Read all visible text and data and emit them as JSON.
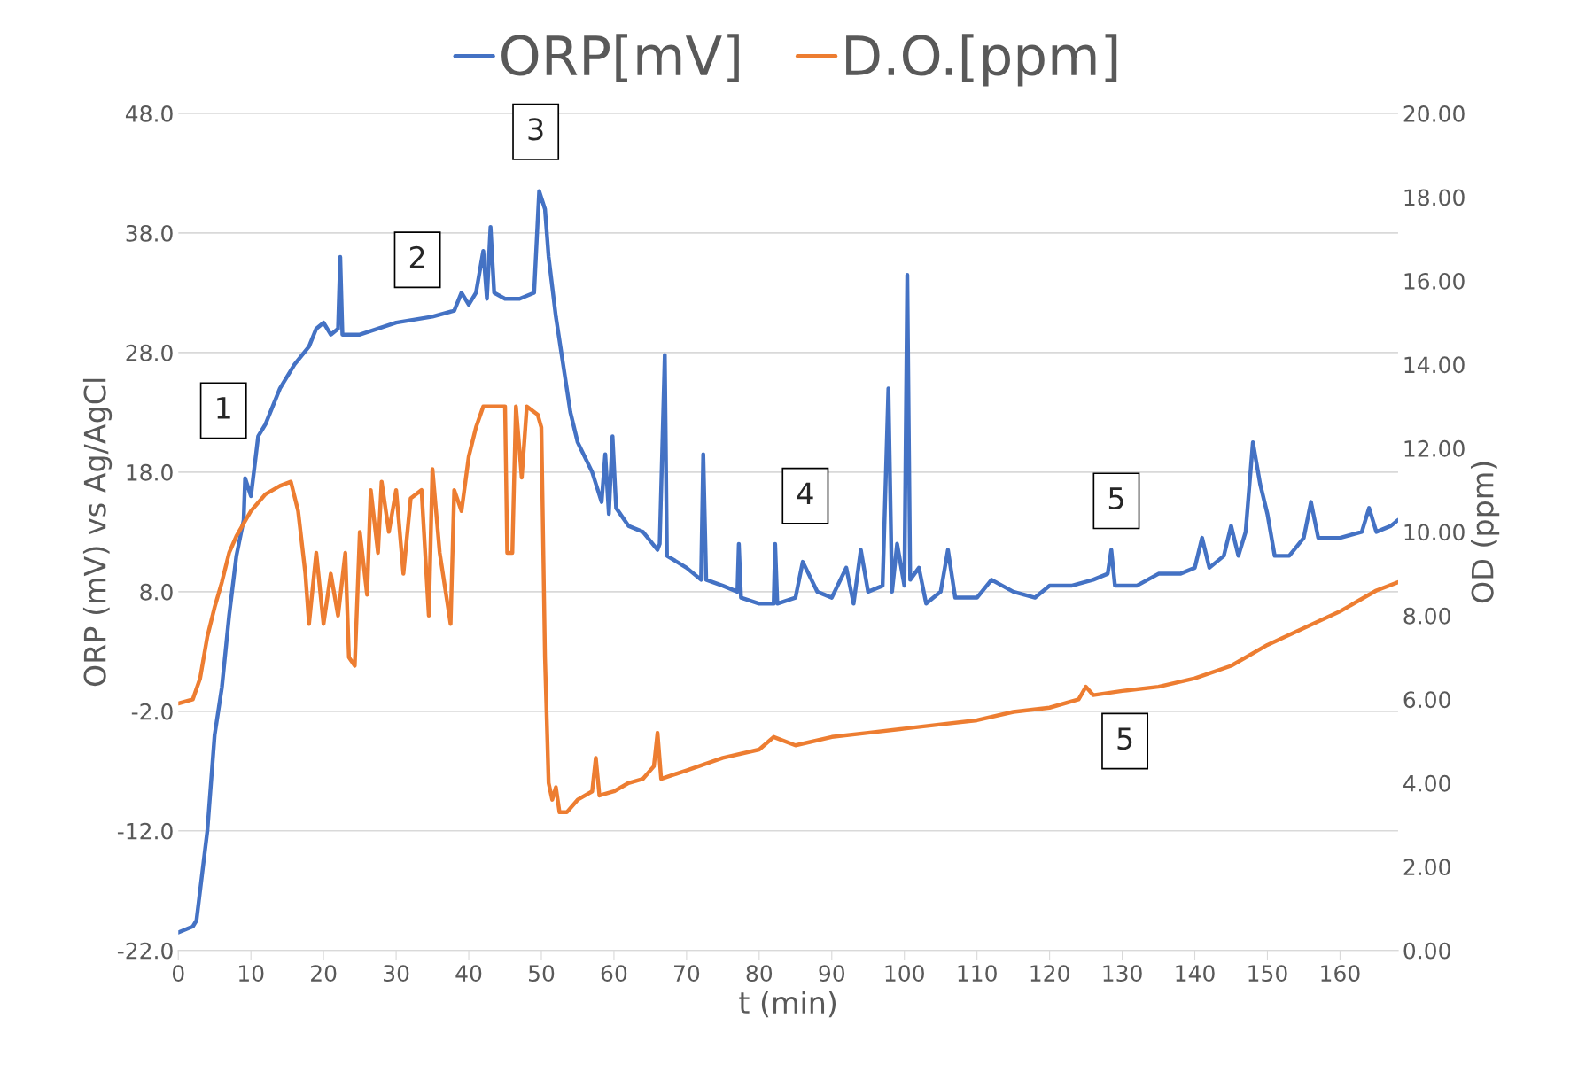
{
  "chart_data": {
    "type": "line",
    "xlabel": "t (min)",
    "ylabel": "ORP (mV) vs Ag/AgCl",
    "y2label": "OD (ppm)",
    "xlim": [
      0,
      168
    ],
    "xticks": [
      0,
      10,
      20,
      30,
      40,
      50,
      60,
      70,
      80,
      90,
      100,
      110,
      120,
      130,
      140,
      150,
      160
    ],
    "ylim": [
      -22,
      48
    ],
    "yticks": [
      {
        "value": -22,
        "label": "-22.0"
      },
      {
        "value": -12,
        "label": "-12.0"
      },
      {
        "value": -2,
        "label": "-2.0"
      },
      {
        "value": 8,
        "label": "8.0"
      },
      {
        "value": 18,
        "label": "18.0"
      },
      {
        "value": 28,
        "label": "28.0"
      },
      {
        "value": 38,
        "label": "38.0"
      },
      {
        "value": 48,
        "label": "48.0"
      }
    ],
    "y2lim": [
      0,
      20
    ],
    "y2ticks": [
      {
        "value": 0,
        "label": "0.00"
      },
      {
        "value": 2,
        "label": "2.00"
      },
      {
        "value": 4,
        "label": "4.00"
      },
      {
        "value": 6,
        "label": "6.00"
      },
      {
        "value": 8,
        "label": "8.00"
      },
      {
        "value": 10,
        "label": "10.00"
      },
      {
        "value": 12,
        "label": "12.00"
      },
      {
        "value": 14,
        "label": "14.00"
      },
      {
        "value": 16,
        "label": "16.00"
      },
      {
        "value": 18,
        "label": "18.00"
      },
      {
        "value": 20,
        "label": "20.00"
      }
    ],
    "grid": "y",
    "legend": "top",
    "marker": "none",
    "line_style": "solid",
    "series": [
      {
        "name": "ORP[mV]",
        "color": "#4472c4",
        "x": [
          0,
          2,
          2.5,
          4,
          5,
          6,
          7,
          8,
          9,
          9.2,
          10,
          11,
          12,
          14,
          16,
          18,
          19,
          20,
          21,
          22,
          22.3,
          22.6,
          25,
          30,
          35,
          38,
          39,
          40,
          41,
          42,
          42.5,
          43,
          43.5,
          45,
          47,
          49,
          49.7,
          50.5,
          51,
          52,
          53,
          54,
          55,
          57,
          58.3,
          58.8,
          59.3,
          59.8,
          60.3,
          62,
          64,
          66,
          66.3,
          67,
          67.3,
          70,
          72,
          72.3,
          72.7,
          75,
          77,
          77.2,
          77.5,
          80,
          82,
          82.2,
          82.5,
          85,
          86,
          88,
          90,
          92,
          93,
          94,
          95,
          97,
          97.8,
          98.3,
          99,
          100,
          100.4,
          100.8,
          102,
          103,
          105,
          106,
          107,
          110,
          112,
          115,
          118,
          120,
          123,
          126,
          128,
          128.5,
          129,
          132,
          135,
          138,
          140,
          141,
          142,
          144,
          145,
          146,
          147,
          148,
          149,
          150,
          151,
          153,
          155,
          156,
          157,
          160,
          163,
          164,
          165,
          167,
          168
        ],
        "values": [
          -20.5,
          -20,
          -19.5,
          -12,
          -4,
          0,
          6,
          11,
          14,
          17.5,
          16,
          21,
          22,
          25,
          27,
          28.5,
          30,
          30.5,
          29.5,
          30,
          36,
          29.5,
          29.5,
          30.5,
          31,
          31.5,
          33,
          32,
          33,
          36.5,
          32.5,
          38.5,
          33,
          32.5,
          32.5,
          33,
          41.5,
          40,
          36,
          31,
          27,
          23,
          20.5,
          18,
          15.5,
          19.5,
          14.5,
          21,
          15,
          13.5,
          13,
          11.5,
          12,
          27.8,
          11,
          10,
          9,
          19.5,
          9,
          8.5,
          8,
          12,
          7.5,
          7,
          7,
          12,
          7,
          7.5,
          10.5,
          8,
          7.5,
          10,
          7,
          11.5,
          8,
          8.5,
          25,
          8,
          12,
          8.5,
          34.5,
          9,
          10,
          7,
          8,
          11.5,
          7.5,
          7.5,
          9,
          8,
          7.5,
          8.5,
          8.5,
          9,
          9.5,
          11.5,
          8.5,
          8.5,
          9.5,
          9.5,
          10,
          12.5,
          10,
          11,
          13.5,
          11,
          13,
          20.5,
          17,
          14.5,
          11,
          11,
          12.5,
          15.5,
          12.5,
          12.5,
          13,
          15,
          13,
          13.5,
          14
        ]
      },
      {
        "name": "D.O.[ppm]",
        "color": "#ed7d31",
        "axis": "y2",
        "x": [
          0,
          2,
          3,
          4,
          5,
          6,
          7,
          8,
          9,
          10,
          12,
          14,
          15.5,
          16.5,
          17.5,
          18,
          19,
          20,
          21,
          22,
          23,
          23.5,
          24.3,
          25,
          26,
          26.5,
          27.5,
          28,
          29,
          30,
          31,
          32,
          33.5,
          34.5,
          35,
          36,
          37.5,
          38,
          39,
          40,
          41,
          42,
          44,
          45,
          45.3,
          46,
          46.5,
          47.3,
          48,
          49.5,
          50,
          50.5,
          51,
          51.5,
          52,
          52.5,
          53.5,
          55,
          57,
          57.5,
          58,
          60,
          62,
          64,
          65.5,
          66,
          66.5,
          70,
          75,
          80,
          82,
          85,
          90,
          95,
          100,
          105,
          110,
          115,
          120,
          124,
          125,
          126,
          130,
          135,
          140,
          145,
          150,
          155,
          160,
          165,
          168
        ],
        "values": [
          5.9,
          6.0,
          6.5,
          7.5,
          8.2,
          8.8,
          9.5,
          9.9,
          10.2,
          10.5,
          10.9,
          11.1,
          11.2,
          10.5,
          9.0,
          7.8,
          9.5,
          7.8,
          9.0,
          8.0,
          9.5,
          7.0,
          6.8,
          10.0,
          8.5,
          11.0,
          9.5,
          11.2,
          10.0,
          11.0,
          9.0,
          10.8,
          11.0,
          8.0,
          11.5,
          9.5,
          7.8,
          11.0,
          10.5,
          11.8,
          12.5,
          13.0,
          13.0,
          13.0,
          9.5,
          9.5,
          13.0,
          11.3,
          13.0,
          12.8,
          12.5,
          7.0,
          4.0,
          3.6,
          3.9,
          3.3,
          3.3,
          3.6,
          3.8,
          4.6,
          3.7,
          3.8,
          4.0,
          4.1,
          4.4,
          5.2,
          4.1,
          4.3,
          4.6,
          4.8,
          5.1,
          4.9,
          5.1,
          5.2,
          5.3,
          5.4,
          5.5,
          5.7,
          5.8,
          6.0,
          6.3,
          6.1,
          6.2,
          6.3,
          6.5,
          6.8,
          7.3,
          7.7,
          8.1,
          8.6,
          8.8
        ]
      }
    ],
    "annotations": [
      "1",
      "2",
      "3",
      "4",
      "5",
      "5"
    ]
  }
}
